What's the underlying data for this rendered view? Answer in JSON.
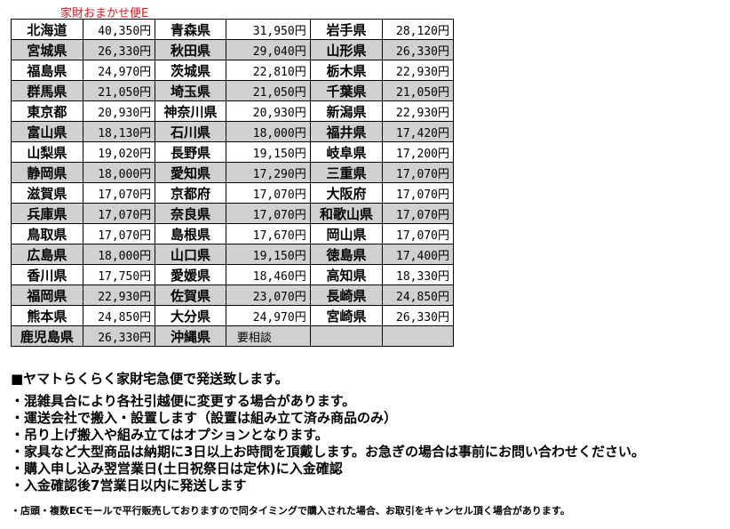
{
  "title": "家財おまかせ便E",
  "rows": [
    [
      [
        "北海道",
        "40,350円"
      ],
      [
        "青森県",
        "31,950円"
      ],
      [
        "岩手県",
        "28,120円"
      ]
    ],
    [
      [
        "宮城県",
        "26,330円"
      ],
      [
        "秋田県",
        "29,040円"
      ],
      [
        "山形県",
        "26,330円"
      ]
    ],
    [
      [
        "福島県",
        "24,970円"
      ],
      [
        "茨城県",
        "22,810円"
      ],
      [
        "栃木県",
        "22,930円"
      ]
    ],
    [
      [
        "群馬県",
        "21,050円"
      ],
      [
        "埼玉県",
        "21,050円"
      ],
      [
        "千葉県",
        "21,050円"
      ]
    ],
    [
      [
        "東京都",
        "20,930円"
      ],
      [
        "神奈川県",
        "20,930円"
      ],
      [
        "新潟県",
        "22,930円"
      ]
    ],
    [
      [
        "富山県",
        "18,130円"
      ],
      [
        "石川県",
        "18,000円"
      ],
      [
        "福井県",
        "17,420円"
      ]
    ],
    [
      [
        "山梨県",
        "19,020円"
      ],
      [
        "長野県",
        "19,150円"
      ],
      [
        "岐阜県",
        "17,200円"
      ]
    ],
    [
      [
        "静岡県",
        "18,000円"
      ],
      [
        "愛知県",
        "17,290円"
      ],
      [
        "三重県",
        "17,070円"
      ]
    ],
    [
      [
        "滋賀県",
        "17,070円"
      ],
      [
        "京都府",
        "17,070円"
      ],
      [
        "大阪府",
        "17,070円"
      ]
    ],
    [
      [
        "兵庫県",
        "17,070円"
      ],
      [
        "奈良県",
        "17,070円"
      ],
      [
        "和歌山県",
        "17,070円"
      ]
    ],
    [
      [
        "鳥取県",
        "17,070円"
      ],
      [
        "島根県",
        "17,670円"
      ],
      [
        "岡山県",
        "17,070円"
      ]
    ],
    [
      [
        "広島県",
        "18,000円"
      ],
      [
        "山口県",
        "19,150円"
      ],
      [
        "徳島県",
        "17,400円"
      ]
    ],
    [
      [
        "香川県",
        "17,750円"
      ],
      [
        "愛媛県",
        "18,460円"
      ],
      [
        "高知県",
        "18,330円"
      ]
    ],
    [
      [
        "福岡県",
        "22,930円"
      ],
      [
        "佐賀県",
        "23,070円"
      ],
      [
        "長崎県",
        "24,850円"
      ]
    ],
    [
      [
        "熊本県",
        "24,850円"
      ],
      [
        "大分県",
        "24,970円"
      ],
      [
        "宮崎県",
        "26,330円"
      ]
    ],
    [
      [
        "鹿児島県",
        "26,330円"
      ],
      [
        "沖縄県",
        "要相談"
      ],
      [
        "",
        ""
      ]
    ]
  ],
  "notes": {
    "heading": "■ヤマトらくらく家財宅急便で発送致します。",
    "items": [
      "・混雑具合により各社引越便に変更する場合があります。",
      "・運送会社で搬入・設置します（設置は組み立て済み商品のみ）",
      "・吊り上げ搬入や組み立てはオプションとなります。",
      "・家具など大型商品は納期に3日以上お時間を頂戴します。お急ぎの場合は事前にお問い合わせください。",
      "・購入申し込み翌営業日(土日祝祭日は定休)に入金確認",
      "・入金確認後7営業日以内に発送します"
    ],
    "small": "・店頭・複数ECモールで平行販売しておりますので同タイミングで購入された場合、お取引をキャンセル頂く場合があります。"
  }
}
